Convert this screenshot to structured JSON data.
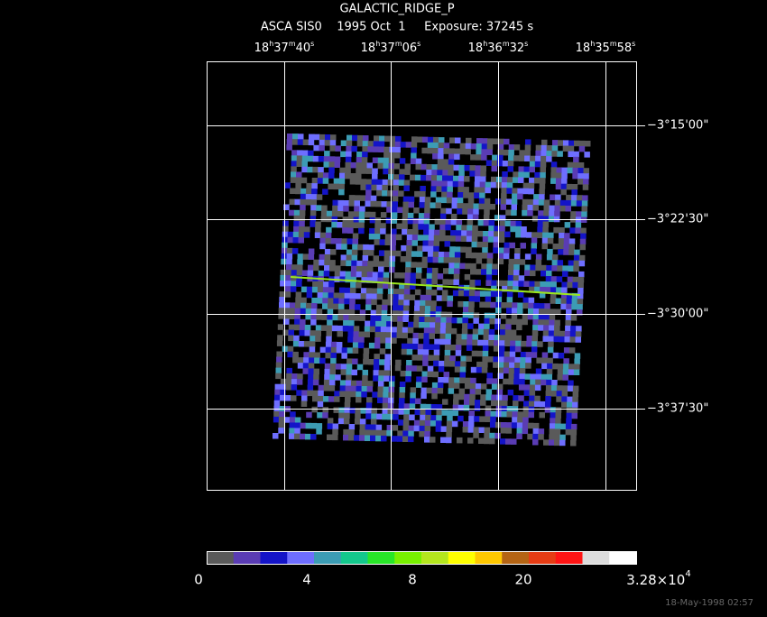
{
  "header": {
    "title": "GALACTIC_RIDGE_P",
    "subtitle": "ASCA SIS0    1995 Oct  1     Exposure: 37245 s"
  },
  "ra_labels": [
    [
      "18",
      "h",
      "37",
      "m",
      "40",
      "s"
    ],
    [
      "18",
      "h",
      "37",
      "m",
      "06",
      "s"
    ],
    [
      "18",
      "h",
      "36",
      "m",
      "32",
      "s"
    ],
    [
      "18",
      "h",
      "35",
      "m",
      "58",
      "s"
    ]
  ],
  "dec_labels": [
    "−3°15'00\"",
    "−3°22'30\"",
    "−3°30'00\"",
    "−3°37'30\""
  ],
  "colorbar": {
    "colors": [
      "#5a5a5a",
      "#5a3cb4",
      "#1414c8",
      "#6e6eff",
      "#3c9cb4",
      "#14c88c",
      "#28e628",
      "#78f000",
      "#b4e61e",
      "#ffff00",
      "#ffc800",
      "#b46414",
      "#e63c14",
      "#ff1414",
      "#dcdcdc",
      "#ffffff"
    ],
    "labels": [
      "0",
      "4",
      "8",
      "20",
      [
        "3.28×10",
        "4"
      ]
    ]
  },
  "timestamp": "18-May-1998 02:57"
}
